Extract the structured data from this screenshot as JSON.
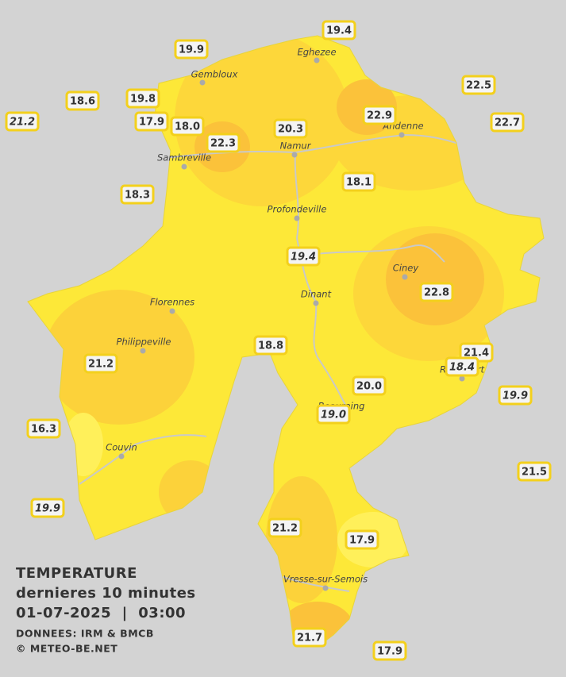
{
  "legend": {
    "title": "TEMPERATURE",
    "subtitle": "dernieres 10 minutes",
    "datetime": "01-07-2025  |  03:00",
    "source": "DONNEES: IRM & BMCB",
    "copyright": "© METEO-BE.NET"
  },
  "cities": [
    "Eghezee",
    "Gembloux",
    "Andenne",
    "Namur",
    "Sambreville",
    "Profondeville",
    "Ciney",
    "Dinant",
    "Florennes",
    "Philippeville",
    "Rochefort",
    "Beauraing",
    "Couvin",
    "Vresse-sur-Semois"
  ],
  "stations": [
    "19.4",
    "19.9",
    "22.5",
    "18.6",
    "19.8",
    "21.2",
    "17.9",
    "18.0",
    "22.3",
    "20.3",
    "22.9",
    "22.7",
    "18.3",
    "18.1",
    "19.4",
    "22.8",
    "18.8",
    "21.4",
    "21.2",
    "18.4",
    "20.0",
    "19.9",
    "19.0",
    "16.3",
    "21.5",
    "19.9",
    "21.2",
    "17.9",
    "21.7",
    "17.9"
  ]
}
